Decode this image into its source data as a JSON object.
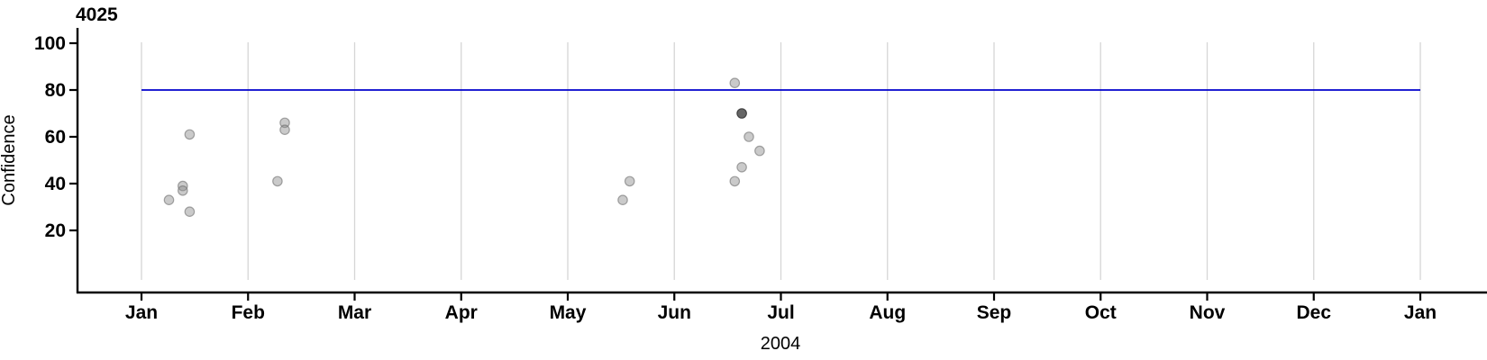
{
  "title": "4025",
  "colors": {
    "reference_line": "#0000cd",
    "gridline": "#d6d6d6",
    "axis": "#000000",
    "point_fill": "#8a8a8a",
    "point_stroke": "#6e6e6e",
    "dark_point_fill": "#595959",
    "dark_point_stroke": "#3c3c3c"
  },
  "chart_data": {
    "type": "scatter",
    "title": "4025",
    "xlabel": "2004",
    "ylabel": "Confidence",
    "x_tick_labels": [
      "Jan",
      "Feb",
      "Mar",
      "Apr",
      "May",
      "Jun",
      "Jul",
      "Aug",
      "Sep",
      "Oct",
      "Nov",
      "Dec",
      "Jan"
    ],
    "y_ticks": [
      20,
      40,
      60,
      80,
      100
    ],
    "ylim": [
      0,
      110
    ],
    "x_range": [
      "2004-01-01",
      "2005-01-01"
    ],
    "grid": "vertical gridlines at each month start",
    "legend": "none",
    "reference_line": {
      "y": 80,
      "color": "#0000cd"
    },
    "points": [
      {
        "date": "2004-01-09",
        "confidence": 33
      },
      {
        "date": "2004-01-13",
        "confidence": 39
      },
      {
        "date": "2004-01-13",
        "confidence": 37
      },
      {
        "date": "2004-01-15",
        "confidence": 61
      },
      {
        "date": "2004-01-15",
        "confidence": 28
      },
      {
        "date": "2004-02-09",
        "confidence": 41
      },
      {
        "date": "2004-02-11",
        "confidence": 66
      },
      {
        "date": "2004-02-11",
        "confidence": 63
      },
      {
        "date": "2004-05-17",
        "confidence": 33
      },
      {
        "date": "2004-05-19",
        "confidence": 41
      },
      {
        "date": "2004-06-18",
        "confidence": 83
      },
      {
        "date": "2004-06-18",
        "confidence": 41
      },
      {
        "date": "2004-06-20",
        "confidence": 70,
        "dark": true
      },
      {
        "date": "2004-06-20",
        "confidence": 47
      },
      {
        "date": "2004-06-22",
        "confidence": 60
      },
      {
        "date": "2004-06-25",
        "confidence": 54
      }
    ]
  }
}
